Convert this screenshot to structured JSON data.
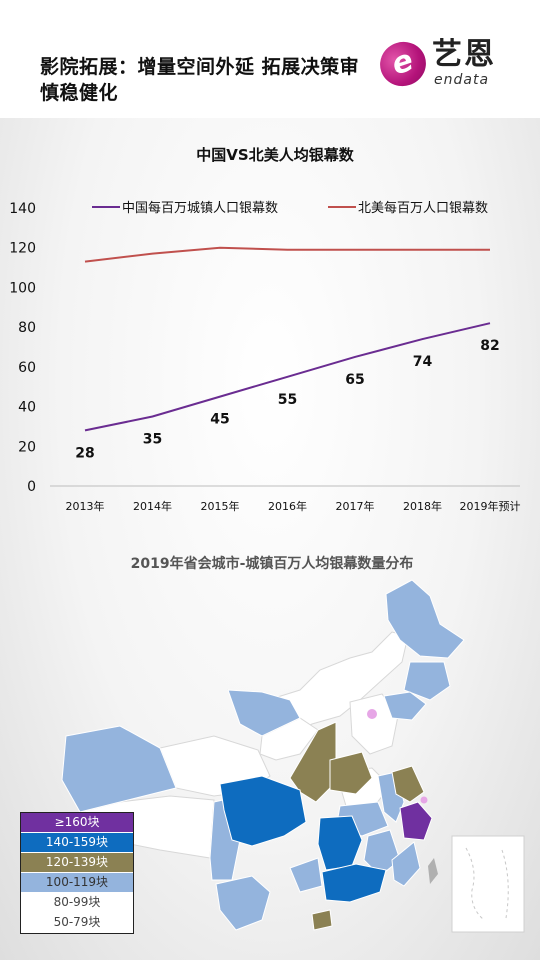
{
  "header": {
    "title": "影院拓展：增量空间外延  拓展决策审慎稳健化",
    "logo": {
      "mark": "e",
      "cn": "艺恩",
      "en": "endata"
    }
  },
  "chart_data": {
    "type": "line",
    "title": "中国VS北美人均银幕数",
    "categories": [
      "2013年",
      "2014年",
      "2015年",
      "2016年",
      "2017年",
      "2018年",
      "2019年预计"
    ],
    "ylim": [
      0,
      140
    ],
    "yticks": [
      0,
      20,
      40,
      60,
      80,
      100,
      120,
      140
    ],
    "legend_position": "top",
    "series": [
      {
        "name": "中国每百万城镇人口银幕数",
        "color": "#6a2c91",
        "values": [
          28,
          35,
          45,
          55,
          65,
          74,
          82
        ],
        "show_labels": true
      },
      {
        "name": "北美每百万人口银幕数",
        "color": "#c0504d",
        "values": [
          113,
          117,
          120,
          119,
          119,
          119,
          119
        ],
        "show_labels": false
      }
    ]
  },
  "map": {
    "title": "2019年省会城市-城镇百万人均银幕数量分布",
    "legend": [
      {
        "label": "≥160块",
        "color": "#7030a0",
        "text_color": "#ffffff"
      },
      {
        "label": "140-159块",
        "color": "#0e6cbf",
        "text_color": "#ffffff"
      },
      {
        "label": "120-139块",
        "color": "#8b8153",
        "text_color": "#ffffff"
      },
      {
        "label": "100-119块",
        "color": "#94b4dd",
        "text_color": "#333333"
      },
      {
        "label": "80-99块",
        "color": "#ffffff",
        "text_color": "#444444"
      },
      {
        "label": "50-79块",
        "color": "#ffffff",
        "text_color": "#444444"
      }
    ]
  }
}
